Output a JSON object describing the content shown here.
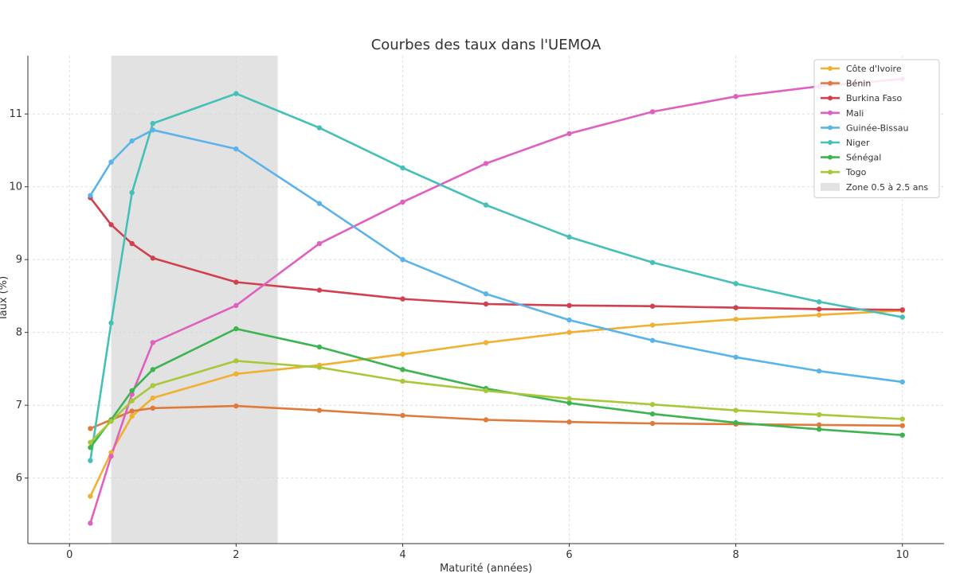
{
  "chart_data": {
    "type": "line",
    "title": "Courbes des taux dans l'UEMOA",
    "xlabel": "Maturité (années)",
    "ylabel": "Taux (%)",
    "xlim": [
      -0.5,
      10.5
    ],
    "ylim": [
      5.1,
      11.8
    ],
    "xticks": [
      0,
      2,
      4,
      6,
      8,
      10
    ],
    "yticks": [
      6,
      7,
      8,
      9,
      10,
      11
    ],
    "grid": true,
    "legend_position": "top-right",
    "shaded_region": {
      "label": "Zone 0.5 à 2.5 ans",
      "x_start": 0.5,
      "x_end": 2.5,
      "color": "#e2e2e2"
    },
    "x": [
      0.25,
      0.5,
      0.75,
      1,
      2,
      3,
      4,
      5,
      6,
      7,
      8,
      9,
      10
    ],
    "series": [
      {
        "name": "Côte d'Ivoire",
        "color": "#f0b030",
        "values": [
          5.75,
          6.35,
          6.85,
          7.1,
          7.43,
          7.55,
          7.7,
          7.86,
          8.0,
          8.1,
          8.18,
          8.24,
          8.3
        ]
      },
      {
        "name": "Bénin",
        "color": "#e07a3a",
        "values": [
          6.68,
          6.8,
          6.92,
          6.96,
          6.99,
          6.93,
          6.86,
          6.8,
          6.77,
          6.75,
          6.74,
          6.73,
          6.72
        ]
      },
      {
        "name": "Burkina Faso",
        "color": "#d0404f",
        "values": [
          9.85,
          9.48,
          9.22,
          9.02,
          8.69,
          8.58,
          8.46,
          8.39,
          8.37,
          8.36,
          8.34,
          8.32,
          8.31
        ]
      },
      {
        "name": "Mali",
        "color": "#e060c0",
        "values": [
          5.38,
          6.3,
          7.15,
          7.86,
          8.37,
          9.22,
          9.79,
          10.32,
          10.73,
          11.03,
          11.24,
          11.38,
          11.48
        ]
      },
      {
        "name": "Guinée-Bissau",
        "color": "#5ab4ea",
        "values": [
          9.88,
          10.34,
          10.63,
          10.78,
          10.52,
          9.77,
          9.0,
          8.53,
          8.17,
          7.89,
          7.66,
          7.47,
          7.32
        ]
      },
      {
        "name": "Niger",
        "color": "#44c0b8",
        "values": [
          6.24,
          8.13,
          9.92,
          10.87,
          11.28,
          10.81,
          10.26,
          9.75,
          9.31,
          8.96,
          8.67,
          8.42,
          8.21
        ]
      },
      {
        "name": "Sénégal",
        "color": "#3cb450",
        "values": [
          6.42,
          6.8,
          7.2,
          7.49,
          8.05,
          7.8,
          7.49,
          7.23,
          7.03,
          6.88,
          6.76,
          6.67,
          6.59
        ]
      },
      {
        "name": "Togo",
        "color": "#a8c83a",
        "values": [
          6.49,
          6.78,
          7.06,
          7.27,
          7.61,
          7.52,
          7.33,
          7.2,
          7.09,
          7.01,
          6.93,
          6.87,
          6.81
        ]
      }
    ]
  }
}
